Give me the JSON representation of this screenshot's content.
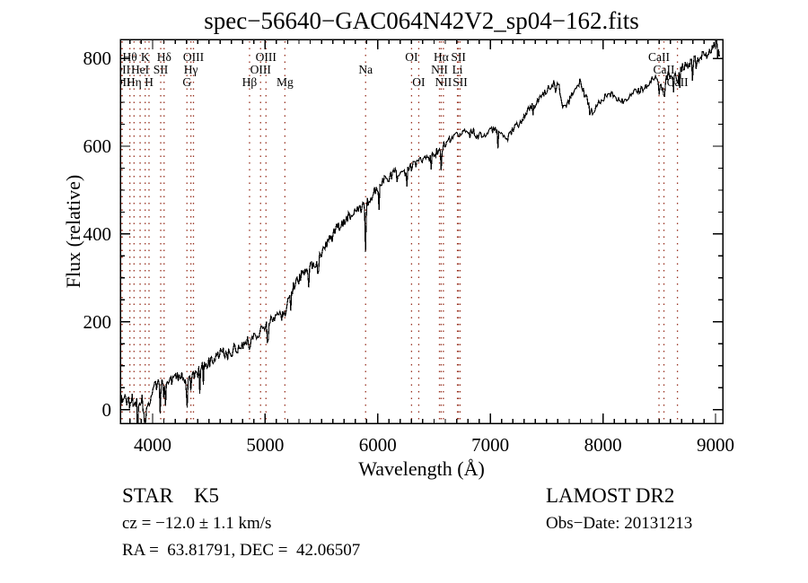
{
  "title": "spec−56640−GAC064N42V2_sp04−162.fits",
  "annotations": {
    "class_label": "STAR    K5",
    "survey": "LAMOST DR2",
    "cz": "cz = −12.0 ± 1.1 km/s",
    "obs_date": "Obs−Date: 20131213",
    "coords": "RA =  63.81791, DEC =  42.06507"
  },
  "chart_data": {
    "type": "line",
    "title": "spec−56640−GAC064N42V2_sp04−162.fits",
    "xlabel": "Wavelength (Å)",
    "ylabel": "Flux (relative)",
    "xlim": [
      3713,
      9064
    ],
    "ylim": [
      -31,
      843
    ],
    "x_ticks": [
      4000,
      5000,
      6000,
      7000,
      8000,
      9000
    ],
    "y_ticks": [
      0,
      200,
      400,
      600,
      800
    ],
    "x_minor_step": 100,
    "y_minor_step": 50,
    "grid": false,
    "legend": "none",
    "line_color": "#000000",
    "marker_line_color": "#993322",
    "spectral_lines": [
      {
        "name": "Hθ",
        "wavelength": 3798,
        "row": 1
      },
      {
        "name": "K",
        "wavelength": 3934,
        "row": 1
      },
      {
        "name": "Hδ",
        "wavelength": 4102,
        "row": 1
      },
      {
        "name": "OIII",
        "wavelength": 4363,
        "row": 1
      },
      {
        "name": "OIII",
        "wavelength": 5007,
        "row": 1
      },
      {
        "name": "OI",
        "wavelength": 6300,
        "row": 1
      },
      {
        "name": "Hα",
        "wavelength": 6563,
        "row": 1
      },
      {
        "name": "SII",
        "wavelength": 6716,
        "row": 1
      },
      {
        "name": "CaII",
        "wavelength": 8498,
        "row": 1
      },
      {
        "name": "OII",
        "wavelength": 3727,
        "row": 2
      },
      {
        "name": "HeI",
        "wavelength": 3889,
        "row": 2
      },
      {
        "name": "SII",
        "wavelength": 4072,
        "row": 2
      },
      {
        "name": "Hγ",
        "wavelength": 4340,
        "row": 2
      },
      {
        "name": "OIII",
        "wavelength": 4959,
        "row": 2
      },
      {
        "name": "Na",
        "wavelength": 5892,
        "row": 2
      },
      {
        "name": "NII",
        "wavelength": 6548,
        "row": 2
      },
      {
        "name": "Li",
        "wavelength": 6708,
        "row": 2
      },
      {
        "name": "CaII",
        "wavelength": 8542,
        "row": 2
      },
      {
        "name": "OII",
        "wavelength": 3730,
        "row": 3
      },
      {
        "name": "Hη",
        "wavelength": 3835,
        "row": 3
      },
      {
        "name": "H",
        "wavelength": 3968,
        "row": 3
      },
      {
        "name": "G",
        "wavelength": 4305,
        "row": 3
      },
      {
        "name": "Hβ",
        "wavelength": 4861,
        "row": 3
      },
      {
        "name": "Mg",
        "wavelength": 5175,
        "row": 3
      },
      {
        "name": "OI",
        "wavelength": 6364,
        "row": 3
      },
      {
        "name": "NII",
        "wavelength": 6583,
        "row": 3
      },
      {
        "name": "SII",
        "wavelength": 6731,
        "row": 3
      },
      {
        "name": "CaII",
        "wavelength": 8662,
        "row": 3
      }
    ],
    "absorption_features": [
      {
        "wavelength": 3934,
        "depth": 42,
        "width": 5
      },
      {
        "wavelength": 3969,
        "depth": 32,
        "width": 5
      },
      {
        "wavelength": 4102,
        "depth": 24,
        "width": 5
      },
      {
        "wavelength": 4305,
        "depth": 20,
        "width": 8
      },
      {
        "wavelength": 4340,
        "depth": 20,
        "width": 5
      },
      {
        "wavelength": 4861,
        "depth": 26,
        "width": 5
      },
      {
        "wavelength": 5175,
        "depth": 26,
        "width": 9
      },
      {
        "wavelength": 5892,
        "depth": 112,
        "width": 5
      },
      {
        "wavelength": 6563,
        "depth": 52,
        "width": 4
      },
      {
        "wavelength": 8498,
        "depth": 28,
        "width": 5
      },
      {
        "wavelength": 8542,
        "depth": 36,
        "width": 5
      },
      {
        "wavelength": 8662,
        "depth": 28,
        "width": 5
      }
    ],
    "envelope": [
      [
        3715,
        15,
        26
      ],
      [
        3760,
        28,
        26
      ],
      [
        3800,
        18,
        27
      ],
      [
        3845,
        32,
        25
      ],
      [
        3890,
        22,
        25
      ],
      [
        3935,
        8,
        22
      ],
      [
        3970,
        35,
        20
      ],
      [
        4010,
        50,
        18
      ],
      [
        4070,
        54,
        17
      ],
      [
        4130,
        62,
        17
      ],
      [
        4190,
        72,
        16
      ],
      [
        4250,
        75,
        15
      ],
      [
        4310,
        66,
        15
      ],
      [
        4380,
        80,
        15
      ],
      [
        4450,
        96,
        15
      ],
      [
        4520,
        108,
        16
      ],
      [
        4575,
        120,
        17
      ],
      [
        4620,
        128,
        17
      ],
      [
        4680,
        127,
        15
      ],
      [
        4750,
        142,
        14
      ],
      [
        4810,
        152,
        13
      ],
      [
        4870,
        163,
        13
      ],
      [
        4930,
        174,
        13
      ],
      [
        4990,
        188,
        12
      ],
      [
        5050,
        202,
        12
      ],
      [
        5110,
        216,
        12
      ],
      [
        5170,
        235,
        12
      ],
      [
        5210,
        252,
        12
      ],
      [
        5260,
        285,
        13
      ],
      [
        5320,
        305,
        13
      ],
      [
        5380,
        320,
        13
      ],
      [
        5440,
        335,
        13
      ],
      [
        5500,
        355,
        14
      ],
      [
        5560,
        380,
        14
      ],
      [
        5620,
        405,
        14
      ],
      [
        5680,
        425,
        14
      ],
      [
        5740,
        440,
        14
      ],
      [
        5800,
        448,
        13
      ],
      [
        5860,
        458,
        13
      ],
      [
        5920,
        478,
        12
      ],
      [
        5980,
        500,
        12
      ],
      [
        6040,
        518,
        12
      ],
      [
        6100,
        530,
        11
      ],
      [
        6160,
        540,
        11
      ],
      [
        6220,
        538,
        11
      ],
      [
        6280,
        550,
        11
      ],
      [
        6340,
        560,
        11
      ],
      [
        6400,
        568,
        11
      ],
      [
        6460,
        576,
        11
      ],
      [
        6520,
        588,
        10
      ],
      [
        6580,
        600,
        10
      ],
      [
        6640,
        612,
        10
      ],
      [
        6700,
        622,
        10
      ],
      [
        6760,
        632,
        10
      ],
      [
        6820,
        640,
        10
      ],
      [
        6880,
        626,
        10
      ],
      [
        6930,
        621,
        10
      ],
      [
        6980,
        630,
        9
      ],
      [
        7040,
        640,
        9
      ],
      [
        7100,
        627,
        9
      ],
      [
        7150,
        617,
        9
      ],
      [
        7210,
        640,
        9
      ],
      [
        7270,
        657,
        9
      ],
      [
        7330,
        678,
        9
      ],
      [
        7390,
        697,
        9
      ],
      [
        7450,
        710,
        9
      ],
      [
        7510,
        730,
        9
      ],
      [
        7560,
        746,
        9
      ],
      [
        7600,
        750,
        9
      ],
      [
        7645,
        694,
        9
      ],
      [
        7695,
        699,
        9
      ],
      [
        7745,
        728,
        9
      ],
      [
        7795,
        747,
        9
      ],
      [
        7845,
        714,
        9
      ],
      [
        7900,
        679,
        9
      ],
      [
        7950,
        691,
        9
      ],
      [
        8010,
        711,
        9
      ],
      [
        8070,
        721,
        9
      ],
      [
        8130,
        711,
        10
      ],
      [
        8190,
        704,
        10
      ],
      [
        8250,
        712,
        10
      ],
      [
        8310,
        727,
        10
      ],
      [
        8370,
        737,
        11
      ],
      [
        8430,
        747,
        11
      ],
      [
        8475,
        755,
        11
      ],
      [
        8520,
        734,
        12
      ],
      [
        8580,
        760,
        12
      ],
      [
        8640,
        756,
        12
      ],
      [
        8700,
        776,
        12
      ],
      [
        8760,
        787,
        13
      ],
      [
        8820,
        799,
        13
      ],
      [
        8880,
        811,
        13
      ],
      [
        8930,
        804,
        13
      ],
      [
        8980,
        826,
        12
      ],
      [
        9015,
        842,
        10
      ],
      [
        9040,
        795,
        8
      ]
    ],
    "noise_seed": 1337,
    "sample_step": 8
  }
}
